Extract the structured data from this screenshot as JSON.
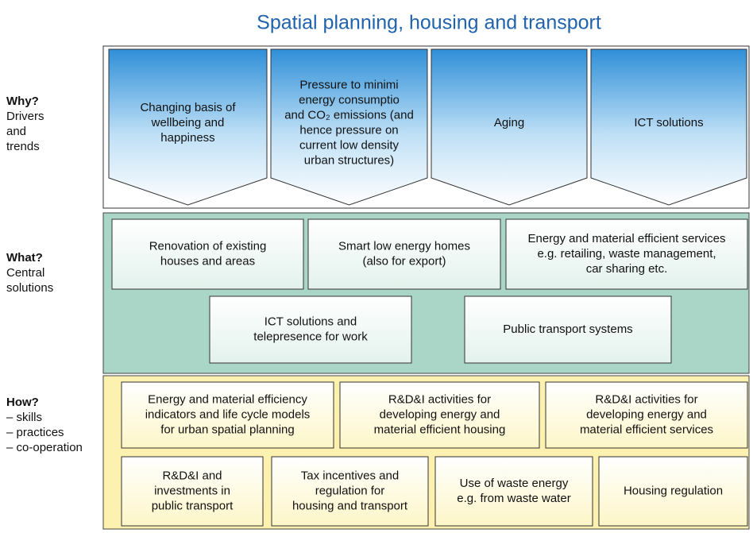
{
  "title": "Spatial planning, housing and transport",
  "sections": [
    {
      "heading": "Why?",
      "sublabel": [
        "Drivers",
        "and",
        "trends"
      ],
      "boxes": [
        {
          "lines": [
            "Changing basis of",
            "wellbeing and",
            "happiness"
          ]
        },
        {
          "lines": [
            "Pressure to minimi",
            "energy consumptio",
            "and CO₂ emissions (and",
            "hence pressure on",
            "current low density",
            "urban structures)"
          ]
        },
        {
          "lines": [
            "Aging"
          ]
        },
        {
          "lines": [
            "ICT solutions"
          ]
        }
      ]
    },
    {
      "heading": "What?",
      "sublabel": [
        "Central",
        "solutions"
      ],
      "boxes": [
        {
          "lines": [
            "Renovation of existing",
            "houses and areas"
          ]
        },
        {
          "lines": [
            "Smart low energy homes",
            "(also for export)"
          ]
        },
        {
          "lines": [
            "Energy and material efficient services",
            "e.g. retailing, waste management,",
            "car sharing etc."
          ]
        },
        {
          "lines": [
            "ICT solutions and",
            "telepresence for work"
          ]
        },
        {
          "lines": [
            "Public transport systems"
          ]
        }
      ]
    },
    {
      "heading": "How?",
      "sublabel": [
        "– skills",
        "– practices",
        "– co-operation"
      ],
      "boxes": [
        {
          "lines": [
            "Energy and material efficiency",
            "indicators and life cycle models",
            "for urban spatial planning"
          ]
        },
        {
          "lines": [
            "R&D&I  activities for",
            "developing energy and",
            "material efficient housing"
          ]
        },
        {
          "lines": [
            "R&D&I  activities for",
            "developing energy and",
            "material efficient services"
          ]
        },
        {
          "lines": [
            "R&D&I and",
            "investments in",
            "public transport"
          ]
        },
        {
          "lines": [
            "Tax incentives and",
            "regulation for",
            "housing and transport"
          ]
        },
        {
          "lines": [
            "Use of waste energy",
            "e.g. from waste water"
          ]
        },
        {
          "lines": [
            "Housing regulation"
          ]
        }
      ]
    }
  ]
}
